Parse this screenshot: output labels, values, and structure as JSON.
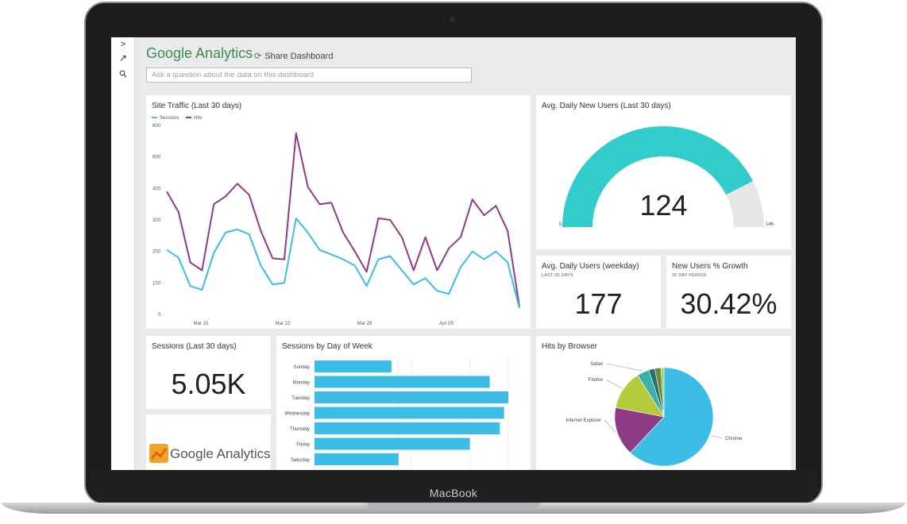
{
  "device": {
    "brand": "MacBook"
  },
  "app": {
    "title": "Google Analytics",
    "share_label": "Share Dashboard",
    "qa_placeholder": "Ask a question about the data on this dashboard"
  },
  "rail": {
    "expand_icon": ">",
    "pin_icon": "↗",
    "search_icon": "⚲"
  },
  "tiles": {
    "site_traffic": {
      "title": "Site Traffic (Last 30 days)"
    },
    "new_users": {
      "title": "Avg. Daily New Users (Last 30 days)",
      "value": "124",
      "min_label": "0",
      "max_label": "146"
    },
    "daily_users": {
      "title": "Avg. Daily Users (weekday)",
      "subtitle": "LAST 30 DAYS",
      "value": "177"
    },
    "growth": {
      "title": "New Users % Growth",
      "subtitle": "30 DAY PERIOD",
      "value": "30.42%"
    },
    "sessions": {
      "title": "Sessions (Last 30 days)",
      "value": "5.05K"
    },
    "logo": {
      "text": "Google Analytics"
    },
    "dow": {
      "title": "Sessions by Day of Week"
    },
    "browser": {
      "title": "Hits by Browser"
    }
  },
  "colors": {
    "sessions": "#3bbde6",
    "hits": "#8e3b86",
    "gauge_fill": "#33cccc",
    "gauge_track": "#e6e6e6",
    "bar": "#3bbde6",
    "title_green": "#3c8a5a"
  },
  "chart_data": [
    {
      "type": "line",
      "title": "Site Traffic (Last 30 days)",
      "x_ticks": [
        "Mar 15",
        "Mar 22",
        "Mar 29",
        "Apr 05"
      ],
      "ylim": [
        0,
        600
      ],
      "y_ticks": [
        0,
        100,
        200,
        300,
        400,
        500,
        600
      ],
      "grid": false,
      "legend": "top-left",
      "series": [
        {
          "name": "Sessions",
          "values": [
            205,
            180,
            90,
            78,
            195,
            260,
            270,
            255,
            155,
            95,
            100,
            305,
            260,
            205,
            190,
            175,
            155,
            90,
            175,
            185,
            140,
            95,
            115,
            75,
            65,
            150,
            200,
            175,
            200,
            165,
            20
          ]
        },
        {
          "name": "Hits",
          "values": [
            390,
            325,
            165,
            140,
            350,
            375,
            415,
            380,
            265,
            178,
            175,
            575,
            405,
            350,
            355,
            260,
            200,
            135,
            305,
            300,
            245,
            140,
            245,
            140,
            210,
            245,
            365,
            315,
            345,
            265,
            25
          ]
        }
      ]
    },
    {
      "type": "gauge",
      "title": "Avg. Daily New Users (Last 30 days)",
      "value": 124,
      "min": 0,
      "max": 146
    },
    {
      "type": "bar",
      "orientation": "horizontal",
      "title": "Sessions by Day of Week",
      "categories": [
        "Sunday",
        "Monday",
        "Tuesday",
        "Wednesday",
        "Thursday",
        "Friday",
        "Saturday"
      ],
      "values": [
        540,
        1230,
        1360,
        1330,
        1300,
        1090,
        590
      ],
      "grid": true
    },
    {
      "type": "pie",
      "title": "Hits by Browser",
      "labels": [
        "Chrome",
        "Internet Explorer",
        "Firefox",
        "Safari",
        "Other 1",
        "Other 2",
        "Other 3"
      ],
      "values": [
        62,
        16,
        13,
        4,
        2,
        2,
        1
      ],
      "colors": [
        "#3bbde6",
        "#8e3b86",
        "#b5cb3c",
        "#3ab0a8",
        "#2a6e6e",
        "#6a8a3a",
        "#9ad070"
      ],
      "label_shown": [
        true,
        true,
        true,
        true,
        false,
        false,
        false
      ]
    }
  ]
}
